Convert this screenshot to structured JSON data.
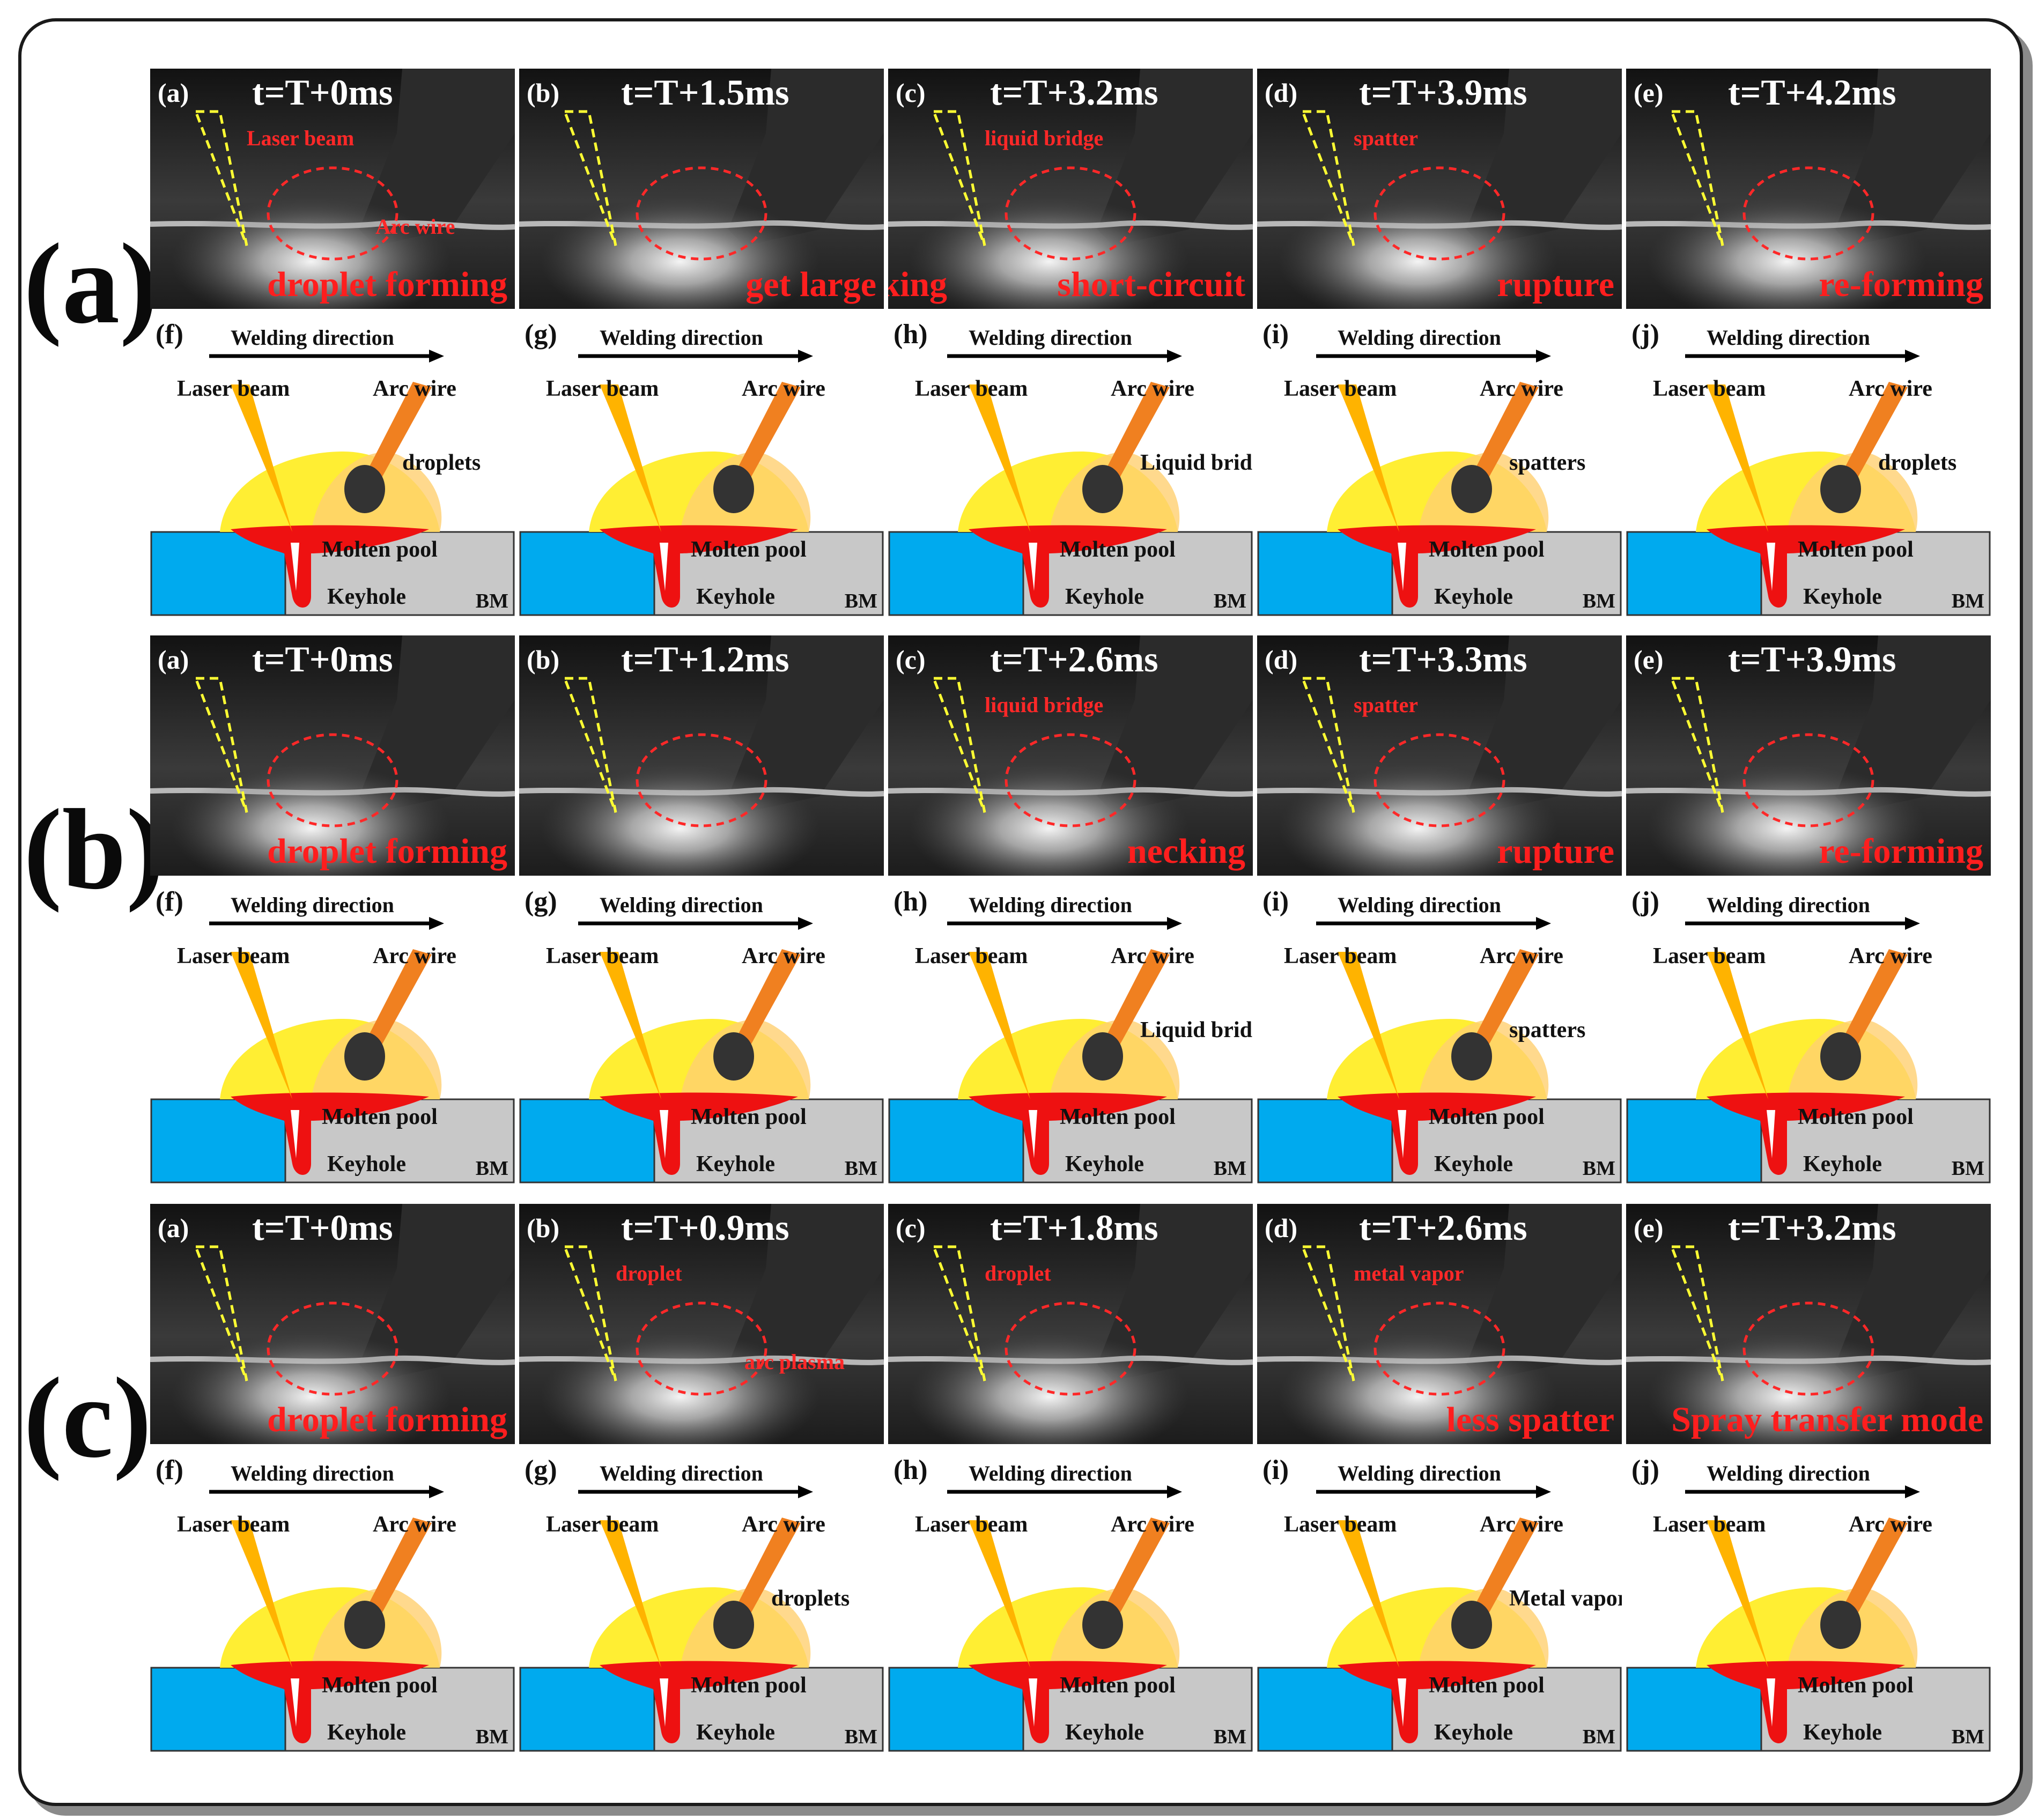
{
  "row_labels": [
    "(a)",
    "(b)",
    "(c)"
  ],
  "schematic_labels": {
    "welding_direction": "Welding direction",
    "laser_beam": "Laser beam",
    "arc_wire": "Arc wire",
    "molten_pool": "Molten pool",
    "keyhole": "Keyhole",
    "bm": "BM"
  },
  "rows": [
    {
      "photos": [
        {
          "label": "(a)",
          "time": "t=T+0ms",
          "caption": "droplet forming",
          "annotations": [
            "Laser beam",
            "Arc wire"
          ]
        },
        {
          "label": "(b)",
          "time": "t=T+1.5ms",
          "caption": "get large",
          "annotations": []
        },
        {
          "label": "(c)",
          "time": "t=T+3.2ms",
          "caption": "necking",
          "caption2": "short-circuit",
          "annotations": [
            "liquid bridge"
          ]
        },
        {
          "label": "(d)",
          "time": "t=T+3.9ms",
          "caption": "rupture",
          "annotations": [
            "spatter"
          ]
        },
        {
          "label": "(e)",
          "time": "t=T+4.2ms",
          "caption": "re-forming",
          "annotations": []
        }
      ],
      "schematics": [
        {
          "label": "(f)",
          "extra": "droplets"
        },
        {
          "label": "(g)",
          "extra": ""
        },
        {
          "label": "(h)",
          "extra": "Liquid bridge"
        },
        {
          "label": "(i)",
          "extra": "spatters"
        },
        {
          "label": "(j)",
          "extra": "droplets"
        }
      ]
    },
    {
      "photos": [
        {
          "label": "(a)",
          "time": "t=T+0ms",
          "caption": "droplet forming",
          "annotations": []
        },
        {
          "label": "(b)",
          "time": "t=T+1.2ms",
          "caption": "",
          "annotations": []
        },
        {
          "label": "(c)",
          "time": "t=T+2.6ms",
          "caption": "necking",
          "annotations": [
            "liquid bridge"
          ]
        },
        {
          "label": "(d)",
          "time": "t=T+3.3ms",
          "caption": "rupture",
          "annotations": [
            "spatter"
          ]
        },
        {
          "label": "(e)",
          "time": "t=T+3.9ms",
          "caption": "re-forming",
          "annotations": []
        }
      ],
      "schematics": [
        {
          "label": "(f)",
          "extra": ""
        },
        {
          "label": "(g)",
          "extra": ""
        },
        {
          "label": "(h)",
          "extra": "Liquid bridge"
        },
        {
          "label": "(i)",
          "extra": "spatters"
        },
        {
          "label": "(j)",
          "extra": ""
        }
      ]
    },
    {
      "photos": [
        {
          "label": "(a)",
          "time": "t=T+0ms",
          "caption": "droplet forming",
          "annotations": []
        },
        {
          "label": "(b)",
          "time": "t=T+0.9ms",
          "caption": "",
          "annotations": [
            "droplet",
            "arc plasma"
          ]
        },
        {
          "label": "(c)",
          "time": "t=T+1.8ms",
          "caption": "",
          "annotations": [
            "droplet"
          ]
        },
        {
          "label": "(d)",
          "time": "t=T+2.6ms",
          "caption": "less spatter",
          "annotations": [
            "metal vapor"
          ]
        },
        {
          "label": "(e)",
          "time": "t=T+3.2ms",
          "caption": "Spray transfer mode",
          "annotations": []
        }
      ],
      "schematics": [
        {
          "label": "(f)",
          "extra": ""
        },
        {
          "label": "(g)",
          "extra": "droplets"
        },
        {
          "label": "(h)",
          "extra": ""
        },
        {
          "label": "(i)",
          "extra": "Metal vapor"
        },
        {
          "label": "(j)",
          "extra": ""
        }
      ]
    }
  ]
}
